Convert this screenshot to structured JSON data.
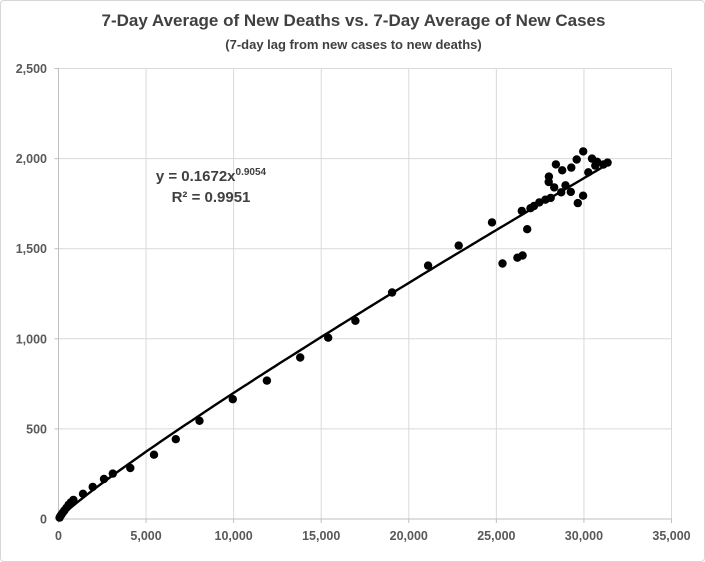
{
  "chart": {
    "title": "7-Day Average of New Deaths vs. 7-Day Average of New Cases",
    "subtitle": "(7-day lag from new cases to new deaths)",
    "equation": {
      "base": "y = 0.1672x",
      "exponent": "0.9054"
    },
    "r_squared": "R² = 0.9951",
    "colors": {
      "point": "#000000",
      "trend_line": "#000000",
      "gridline": "#d9d9d9",
      "axis": "#bfbfbf",
      "title_text": "#404040",
      "tick_text": "#595959",
      "frame_border": "#d6d6d6",
      "background": "#ffffff"
    }
  },
  "chart_data": {
    "type": "scatter",
    "title": "7-Day Average of New Deaths vs. 7-Day Average of New Cases",
    "subtitle": "(7-day lag from new cases to new deaths)",
    "xlabel": "",
    "ylabel": "",
    "xlim": [
      0,
      35000
    ],
    "ylim": [
      0,
      2500
    ],
    "grid": true,
    "legend": "none",
    "x_ticks": [
      {
        "value": 0,
        "label": "0"
      },
      {
        "value": 5000,
        "label": "5,000"
      },
      {
        "value": 10000,
        "label": "10,000"
      },
      {
        "value": 15000,
        "label": "15,000"
      },
      {
        "value": 20000,
        "label": "20,000"
      },
      {
        "value": 25000,
        "label": "25,000"
      },
      {
        "value": 30000,
        "label": "30,000"
      },
      {
        "value": 35000,
        "label": "35,000"
      }
    ],
    "y_ticks": [
      {
        "value": 0,
        "label": "0"
      },
      {
        "value": 500,
        "label": "500"
      },
      {
        "value": 1000,
        "label": "1,000"
      },
      {
        "value": 1500,
        "label": "1,500"
      },
      {
        "value": 2000,
        "label": "2,000"
      },
      {
        "value": 2500,
        "label": "2,500"
      }
    ],
    "trendline": {
      "type": "power",
      "coefficient": 0.1672,
      "exponent": 0.9054,
      "r2": 0.9951,
      "x_start": 40,
      "x_end": 31500
    },
    "points": [
      [
        60,
        8
      ],
      [
        110,
        16
      ],
      [
        170,
        25
      ],
      [
        250,
        36
      ],
      [
        340,
        48
      ],
      [
        450,
        62
      ],
      [
        570,
        78
      ],
      [
        700,
        92
      ],
      [
        850,
        106
      ],
      [
        1400,
        140
      ],
      [
        1950,
        178
      ],
      [
        2600,
        222
      ],
      [
        3100,
        252
      ],
      [
        4100,
        283
      ],
      [
        5450,
        357
      ],
      [
        6700,
        443
      ],
      [
        8050,
        545
      ],
      [
        9950,
        665
      ],
      [
        11900,
        768
      ],
      [
        13800,
        896
      ],
      [
        15400,
        1006
      ],
      [
        16950,
        1100
      ],
      [
        19050,
        1257
      ],
      [
        21100,
        1406
      ],
      [
        22850,
        1517
      ],
      [
        24750,
        1646
      ],
      [
        25350,
        1418
      ],
      [
        26200,
        1450
      ],
      [
        26500,
        1462
      ],
      [
        26760,
        1608
      ],
      [
        26450,
        1710
      ],
      [
        26950,
        1725
      ],
      [
        27150,
        1737
      ],
      [
        27450,
        1757
      ],
      [
        27800,
        1772
      ],
      [
        28100,
        1782
      ],
      [
        28300,
        1840
      ],
      [
        28700,
        1813
      ],
      [
        28950,
        1852
      ],
      [
        29250,
        1815
      ],
      [
        29650,
        1753
      ],
      [
        29950,
        1794
      ],
      [
        27990,
        1870
      ],
      [
        28000,
        1900
      ],
      [
        28400,
        1968
      ],
      [
        28760,
        1935
      ],
      [
        29280,
        1950
      ],
      [
        29590,
        1995
      ],
      [
        29960,
        2040
      ],
      [
        30250,
        1924
      ],
      [
        30460,
        2000
      ],
      [
        30650,
        1961
      ],
      [
        30760,
        1982
      ],
      [
        31120,
        1967
      ],
      [
        31350,
        1978
      ]
    ]
  }
}
